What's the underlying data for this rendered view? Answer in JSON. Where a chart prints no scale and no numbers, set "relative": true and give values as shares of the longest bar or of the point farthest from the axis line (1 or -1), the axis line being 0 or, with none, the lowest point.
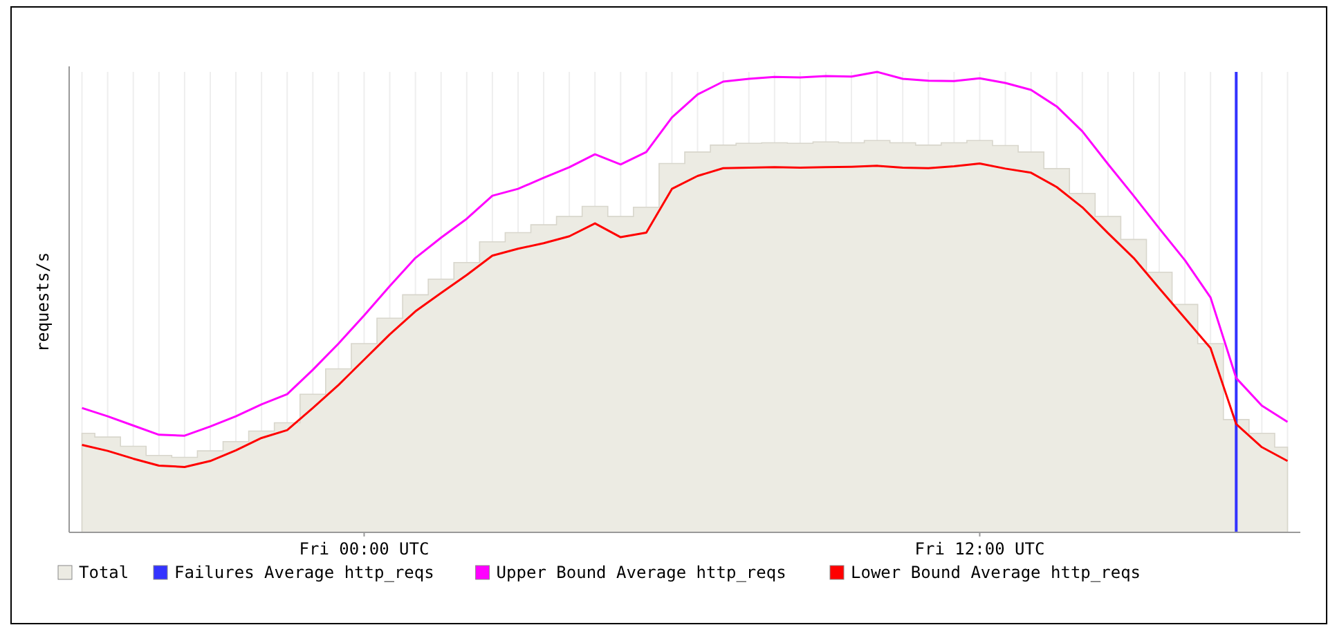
{
  "chart_data": {
    "type": "line",
    "relative": true,
    "ylabel": "requests/s",
    "grid": "x",
    "legend": "bottom",
    "categories": [
      null,
      null,
      null,
      null,
      null,
      null,
      null,
      null,
      null,
      null,
      null,
      "Fri 00:00 UTC",
      null,
      null,
      null,
      null,
      null,
      null,
      null,
      null,
      null,
      null,
      null,
      null,
      null,
      null,
      null,
      null,
      null,
      null,
      null,
      null,
      null,
      null,
      null,
      "Fri 12:00 UTC",
      null,
      null,
      null,
      null,
      null,
      null,
      null,
      null,
      null,
      null,
      null,
      null
    ],
    "series": [
      {
        "name": "Total",
        "type": "area",
        "color": "#ecebe3",
        "values": [
          0.215,
          0.207,
          0.187,
          0.167,
          0.163,
          0.177,
          0.197,
          0.22,
          0.238,
          0.3,
          0.355,
          0.41,
          0.465,
          0.516,
          0.55,
          0.586,
          0.631,
          0.651,
          0.668,
          0.686,
          0.708,
          0.686,
          0.706,
          0.801,
          0.826,
          0.841,
          0.845,
          0.846,
          0.845,
          0.848,
          0.846,
          0.851,
          0.846,
          0.841,
          0.846,
          0.851,
          0.84,
          0.826,
          0.79,
          0.736,
          0.686,
          0.636,
          0.565,
          0.495,
          0.41,
          0.245,
          0.215,
          0.185
        ]
      },
      {
        "name": "Failures Average http_reqs",
        "type": "bar",
        "color": "#3333ff",
        "values": [
          null,
          null,
          null,
          null,
          null,
          null,
          null,
          null,
          null,
          null,
          null,
          null,
          null,
          null,
          null,
          null,
          null,
          null,
          null,
          null,
          null,
          null,
          null,
          null,
          null,
          null,
          null,
          null,
          null,
          null,
          null,
          null,
          null,
          null,
          null,
          null,
          null,
          null,
          null,
          null,
          null,
          null,
          null,
          null,
          null,
          1,
          null,
          null
        ]
      },
      {
        "name": "Upper Bound Average http_reqs",
        "color": "#ff00ff",
        "values": [
          0.27,
          0.252,
          0.232,
          0.212,
          0.21,
          0.23,
          0.252,
          0.278,
          0.3,
          0.353,
          0.41,
          0.471,
          0.535,
          0.596,
          0.64,
          0.681,
          0.731,
          0.746,
          0.77,
          0.793,
          0.821,
          0.799,
          0.826,
          0.901,
          0.951,
          0.979,
          0.985,
          0.989,
          0.988,
          0.991,
          0.99,
          1,
          0.985,
          0.981,
          0.98,
          0.986,
          0.976,
          0.961,
          0.925,
          0.871,
          0.8,
          0.731,
          0.66,
          0.591,
          0.51,
          0.335,
          0.275,
          0.24
        ]
      },
      {
        "name": "Lower Bound Average http_reqs",
        "color": "#ff0000",
        "values": [
          0.19,
          0.177,
          0.16,
          0.145,
          0.142,
          0.155,
          0.178,
          0.205,
          0.222,
          0.27,
          0.32,
          0.375,
          0.43,
          0.48,
          0.52,
          0.559,
          0.601,
          0.616,
          0.628,
          0.643,
          0.671,
          0.641,
          0.651,
          0.746,
          0.774,
          0.791,
          0.792,
          0.793,
          0.792,
          0.793,
          0.794,
          0.796,
          0.792,
          0.791,
          0.795,
          0.801,
          0.79,
          0.781,
          0.75,
          0.706,
          0.65,
          0.596,
          0.53,
          0.465,
          0.4,
          0.235,
          0.185,
          0.155
        ]
      }
    ]
  }
}
